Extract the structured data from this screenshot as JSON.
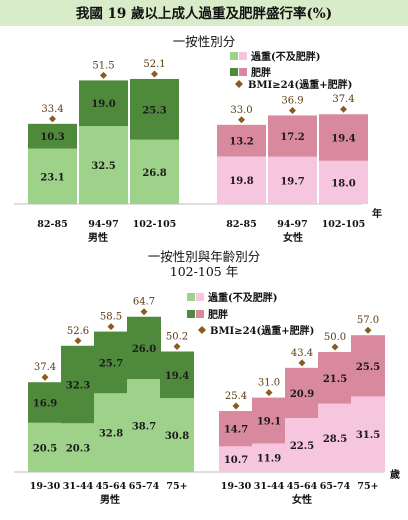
{
  "title": "我國 19 歲以上成人過重及肥胖盛行率(%)",
  "legend": {
    "overweight": "過重(不及肥胖)",
    "obese": "肥胖",
    "total": "BMI≥24(過重+肥胖)"
  },
  "colors": {
    "title_bg": "#d9ecc9",
    "male_overweight": "#9ed28b",
    "male_obese": "#4f8a3c",
    "female_overweight": "#f6c6de",
    "female_obese": "#d9899e",
    "total_marker": "#8a5a1e"
  },
  "chart_data": [
    {
      "type": "bar",
      "subtitle": "一按性別分",
      "x_unit": "年",
      "groups": [
        {
          "name": "男性",
          "categories": [
            "82-85",
            "94-97",
            "102-105"
          ],
          "series": [
            {
              "name": "過重(不及肥胖)",
              "values": [
                23.1,
                32.5,
                26.8
              ]
            },
            {
              "name": "肥胖",
              "values": [
                10.3,
                19.0,
                25.3
              ]
            }
          ],
          "totals": [
            33.4,
            51.5,
            52.1
          ]
        },
        {
          "name": "女性",
          "categories": [
            "82-85",
            "94-97",
            "102-105"
          ],
          "series": [
            {
              "name": "過重(不及肥胖)",
              "values": [
                19.8,
                19.7,
                18.0
              ]
            },
            {
              "name": "肥胖",
              "values": [
                13.2,
                17.2,
                19.4
              ]
            }
          ],
          "totals": [
            33.0,
            36.9,
            37.4
          ]
        }
      ],
      "stacked": true,
      "ylim": [
        0,
        60
      ]
    },
    {
      "type": "bar",
      "subtitle": "一按性別與年齡別分",
      "subtitle2": "102-105 年",
      "x_unit": "歲",
      "groups": [
        {
          "name": "男性",
          "categories": [
            "19-30",
            "31-44",
            "45-64",
            "65-74",
            "75+"
          ],
          "series": [
            {
              "name": "過重(不及肥胖)",
              "values": [
                20.5,
                20.3,
                32.8,
                38.7,
                30.8
              ]
            },
            {
              "name": "肥胖",
              "values": [
                16.9,
                32.3,
                25.7,
                26.0,
                19.4
              ]
            }
          ],
          "totals": [
            37.4,
            52.6,
            58.5,
            64.7,
            50.2
          ]
        },
        {
          "name": "女性",
          "categories": [
            "19-30",
            "31-44",
            "45-64",
            "65-74",
            "75+"
          ],
          "series": [
            {
              "name": "過重(不及肥胖)",
              "values": [
                10.7,
                11.9,
                22.5,
                28.5,
                31.5
              ]
            },
            {
              "name": "肥胖",
              "values": [
                14.7,
                19.1,
                20.9,
                21.5,
                25.5
              ]
            }
          ],
          "totals": [
            25.4,
            31.0,
            43.4,
            50.0,
            57.0
          ]
        }
      ],
      "stacked": true,
      "ylim": [
        0,
        70
      ]
    }
  ]
}
